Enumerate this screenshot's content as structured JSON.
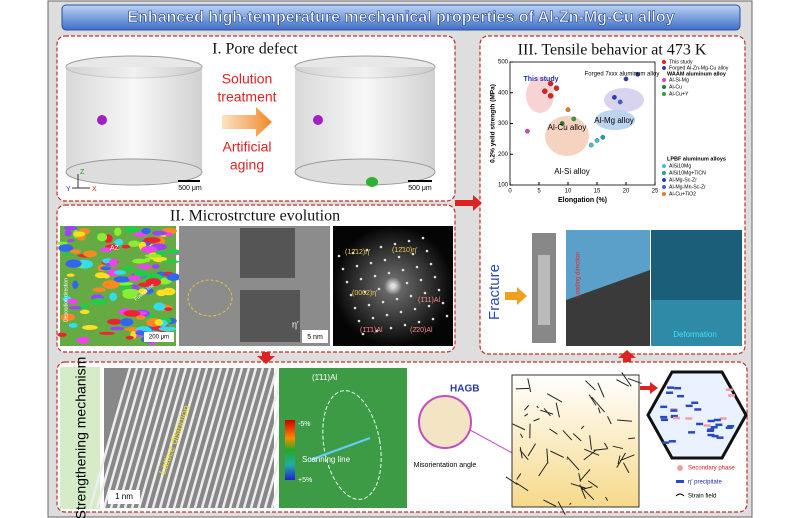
{
  "title": "Enhanced high-temperature mechanical properties of Al-Zn-Mg-Cu alloy",
  "pore_defect": {
    "title": "I. Pore defect",
    "process": [
      "Solution",
      "treatment",
      "Artificial",
      "aging"
    ],
    "scale_bars": [
      "500 μm",
      "500 μm"
    ],
    "axes": [
      "Z",
      "X",
      "Y"
    ]
  },
  "microstructure": {
    "title": "II. Microstrcture evolution",
    "ebsd_labels": [
      "AZ",
      "Deposition direction",
      "Fusion line",
      "200 μm"
    ],
    "tem_labels": [
      "5 nm",
      "η′"
    ],
    "diffraction_labels": [
      "(12̄12)η′",
      "(12̄10)η′",
      "(0002)η′",
      "(1̄11)Al",
      "(1̄1̄1)Al",
      "(2̄20)Al"
    ]
  },
  "tensile": {
    "title": "III. Tensile behavior at 473 K",
    "chart": {
      "type": "scatter",
      "x_label": "Elongation (%)",
      "y_label": "0.2% yeild strength (MPa)",
      "xlim": [
        0,
        25
      ],
      "ylim": [
        100,
        500
      ],
      "xticks": [
        0,
        5,
        10,
        15,
        20,
        25
      ],
      "yticks": [
        100,
        200,
        300,
        400,
        500
      ],
      "annotations": [
        "This study",
        "Forged 7xxx aluminum alloy",
        "Al-Mg alloy",
        "Al-Cu alloy",
        "Al-Si alloy"
      ],
      "legend_headers": [
        "LPBF aluminum alloys",
        "WAAM aluminum alloy"
      ],
      "series": [
        {
          "name": "This study",
          "color": "#e02020",
          "x": [
            6,
            7,
            8,
            7
          ],
          "y": [
            405,
            430,
            415,
            390
          ]
        },
        {
          "name": "Forged Al-Zn-Mg-Cu alloy",
          "color": "#3a3ab0",
          "x": [
            20,
            22
          ],
          "y": [
            445,
            460
          ]
        },
        {
          "name": "AlSi10Mg",
          "color": "#40c0d0",
          "x": [
            14,
            15
          ],
          "y": [
            230,
            245
          ]
        },
        {
          "name": "AlSi10Mg+TiCN",
          "color": "#20a0a0",
          "x": [
            16
          ],
          "y": [
            255
          ]
        },
        {
          "name": "Al-Mg-Sc-Zr",
          "color": "#2040c0",
          "x": [
            18
          ],
          "y": [
            385
          ]
        },
        {
          "name": "Al-Mg-Mn-Sc-Zr",
          "color": "#4060d0",
          "x": [
            19
          ],
          "y": [
            370
          ]
        },
        {
          "name": "Al-Cu+TiO2",
          "color": "#e08020",
          "x": [
            10
          ],
          "y": [
            345
          ]
        },
        {
          "name": "Al-Si-Mg",
          "color": "#e040c0",
          "x": [
            3
          ],
          "y": [
            275
          ]
        },
        {
          "name": "Al-Cu",
          "color": "#208020",
          "x": [
            9
          ],
          "y": [
            300
          ]
        },
        {
          "name": "Al-Cu+Y",
          "color": "#30a030",
          "x": [
            11
          ],
          "y": [
            315
          ]
        }
      ]
    },
    "fracture": {
      "label": "Fracture",
      "loading": "Loading direction",
      "deformation": "Deformation"
    }
  },
  "strengthening": {
    "title": "Strengthening mechanism",
    "lattice": "Lattice distortion",
    "scale_bar": "1 nm",
    "strain_min": "-5%",
    "strain_max": "+5%",
    "plane": "(1̄11)Al",
    "scanning": "Scanning line",
    "hagb": "HAGB",
    "misorientation": "Misorientation angle",
    "legend": [
      "Secondary phase",
      "η′ precipitate",
      "Strain field"
    ]
  }
}
